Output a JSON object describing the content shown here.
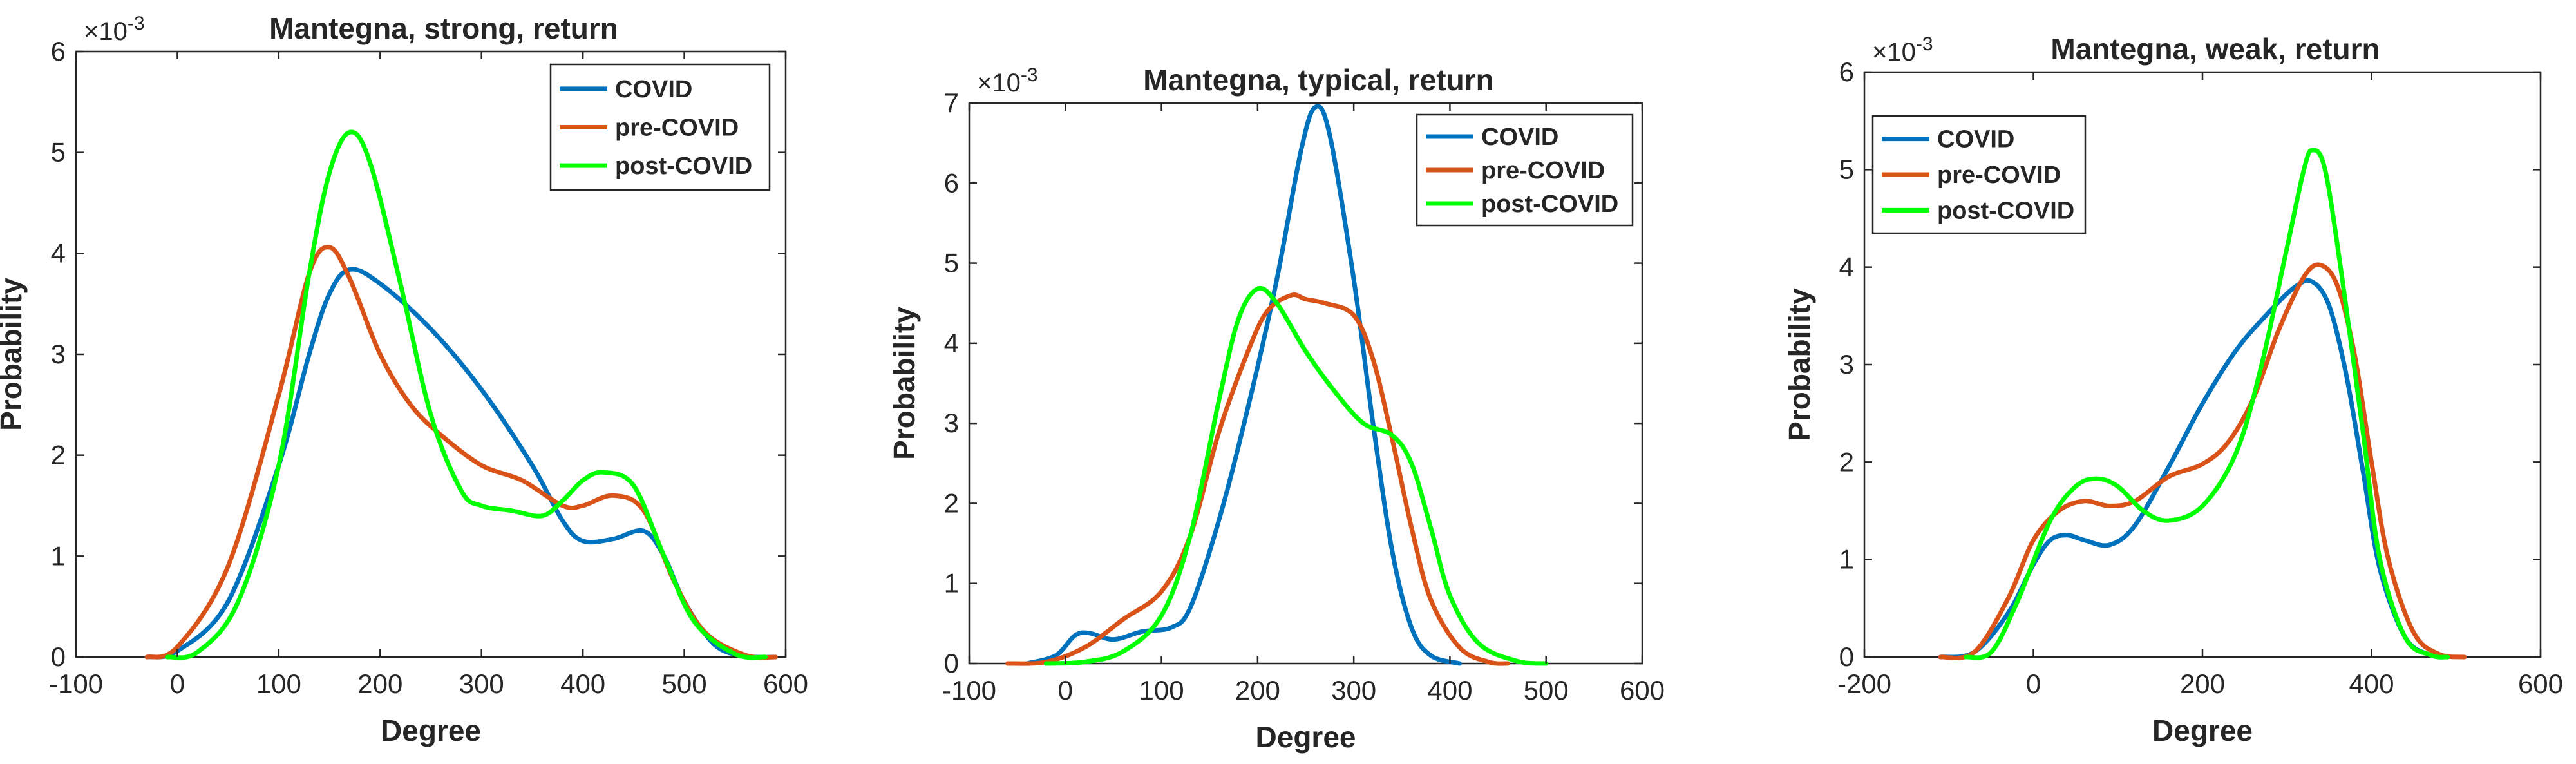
{
  "chart_data": [
    {
      "type": "line",
      "title": "Mantegna, strong, return",
      "xlabel": "Degree",
      "ylabel": "Probability",
      "y_exponent_base": "×10",
      "y_exponent_power": "-3",
      "xlim": [
        -100,
        600
      ],
      "ylim": [
        0,
        6
      ],
      "xticks": [
        -100,
        0,
        100,
        200,
        300,
        400,
        500,
        600
      ],
      "yticks": [
        0,
        1,
        2,
        3,
        4,
        5,
        6
      ],
      "legend_position": "top-right",
      "series": [
        {
          "name": "COVID",
          "color": "#0072BD",
          "points": [
            [
              -30,
              0
            ],
            [
              0,
              0.06
            ],
            [
              50,
              0.55
            ],
            [
              100,
              1.9
            ],
            [
              130,
              3.0
            ],
            [
              150,
              3.6
            ],
            [
              170,
              3.84
            ],
            [
              200,
              3.7
            ],
            [
              250,
              3.25
            ],
            [
              300,
              2.65
            ],
            [
              350,
              1.9
            ],
            [
              380,
              1.35
            ],
            [
              400,
              1.15
            ],
            [
              430,
              1.17
            ],
            [
              460,
              1.25
            ],
            [
              480,
              1.0
            ],
            [
              500,
              0.55
            ],
            [
              530,
              0.12
            ],
            [
              560,
              0.01
            ],
            [
              590,
              0
            ]
          ]
        },
        {
          "name": "pre-COVID",
          "color": "#D95319",
          "points": [
            [
              -30,
              0
            ],
            [
              0,
              0.1
            ],
            [
              50,
              0.9
            ],
            [
              100,
              2.6
            ],
            [
              130,
              3.8
            ],
            [
              150,
              4.06
            ],
            [
              170,
              3.75
            ],
            [
              200,
              3.0
            ],
            [
              230,
              2.5
            ],
            [
              260,
              2.2
            ],
            [
              300,
              1.9
            ],
            [
              340,
              1.75
            ],
            [
              380,
              1.5
            ],
            [
              400,
              1.5
            ],
            [
              430,
              1.6
            ],
            [
              460,
              1.45
            ],
            [
              490,
              0.75
            ],
            [
              520,
              0.25
            ],
            [
              560,
              0.02
            ],
            [
              590,
              0
            ]
          ]
        },
        {
          "name": "post-COVID",
          "color": "#00FF00",
          "points": [
            [
              -10,
              0
            ],
            [
              20,
              0.05
            ],
            [
              60,
              0.55
            ],
            [
              100,
              1.9
            ],
            [
              130,
              3.8
            ],
            [
              150,
              4.8
            ],
            [
              170,
              5.2
            ],
            [
              190,
              4.9
            ],
            [
              220,
              3.7
            ],
            [
              250,
              2.4
            ],
            [
              280,
              1.65
            ],
            [
              300,
              1.5
            ],
            [
              330,
              1.45
            ],
            [
              360,
              1.4
            ],
            [
              380,
              1.55
            ],
            [
              400,
              1.75
            ],
            [
              420,
              1.83
            ],
            [
              450,
              1.7
            ],
            [
              480,
              1.0
            ],
            [
              510,
              0.35
            ],
            [
              550,
              0.03
            ],
            [
              580,
              0
            ]
          ]
        }
      ]
    },
    {
      "type": "line",
      "title": "Mantegna, typical, return",
      "xlabel": "Degree",
      "ylabel": "Probability",
      "y_exponent_base": "×10",
      "y_exponent_power": "-3",
      "xlim": [
        -100,
        600
      ],
      "ylim": [
        0,
        7
      ],
      "xticks": [
        -100,
        0,
        100,
        200,
        300,
        400,
        500,
        600
      ],
      "yticks": [
        0,
        1,
        2,
        3,
        4,
        5,
        6,
        7
      ],
      "legend_position": "top-right",
      "series": [
        {
          "name": "COVID",
          "color": "#0072BD",
          "points": [
            [
              -40,
              0
            ],
            [
              -10,
              0.1
            ],
            [
              10,
              0.35
            ],
            [
              25,
              0.38
            ],
            [
              50,
              0.3
            ],
            [
              80,
              0.4
            ],
            [
              110,
              0.45
            ],
            [
              130,
              0.7
            ],
            [
              160,
              1.8
            ],
            [
              190,
              3.2
            ],
            [
              220,
              4.8
            ],
            [
              245,
              6.4
            ],
            [
              260,
              6.95
            ],
            [
              275,
              6.6
            ],
            [
              300,
              4.8
            ],
            [
              320,
              3.0
            ],
            [
              340,
              1.4
            ],
            [
              360,
              0.45
            ],
            [
              380,
              0.1
            ],
            [
              410,
              0
            ]
          ]
        },
        {
          "name": "pre-COVID",
          "color": "#D95319",
          "points": [
            [
              -60,
              0
            ],
            [
              -20,
              0.02
            ],
            [
              20,
              0.2
            ],
            [
              60,
              0.55
            ],
            [
              100,
              0.9
            ],
            [
              130,
              1.6
            ],
            [
              160,
              2.9
            ],
            [
              190,
              3.9
            ],
            [
              210,
              4.4
            ],
            [
              235,
              4.6
            ],
            [
              250,
              4.55
            ],
            [
              270,
              4.5
            ],
            [
              300,
              4.35
            ],
            [
              320,
              3.8
            ],
            [
              340,
              2.8
            ],
            [
              360,
              1.7
            ],
            [
              380,
              0.8
            ],
            [
              410,
              0.2
            ],
            [
              440,
              0.02
            ],
            [
              460,
              0
            ]
          ]
        },
        {
          "name": "post-COVID",
          "color": "#00FF00",
          "points": [
            [
              -20,
              0
            ],
            [
              20,
              0.02
            ],
            [
              60,
              0.15
            ],
            [
              100,
              0.6
            ],
            [
              130,
              1.6
            ],
            [
              160,
              3.3
            ],
            [
              180,
              4.3
            ],
            [
              200,
              4.68
            ],
            [
              220,
              4.5
            ],
            [
              250,
              3.9
            ],
            [
              280,
              3.4
            ],
            [
              310,
              3.0
            ],
            [
              340,
              2.85
            ],
            [
              360,
              2.5
            ],
            [
              380,
              1.7
            ],
            [
              400,
              0.85
            ],
            [
              430,
              0.25
            ],
            [
              470,
              0.03
            ],
            [
              500,
              0
            ]
          ]
        }
      ]
    },
    {
      "type": "line",
      "title": "Mantegna, weak, return",
      "xlabel": "Degree",
      "ylabel": "Probability",
      "y_exponent_base": "×10",
      "y_exponent_power": "-3",
      "xlim": [
        -200,
        600
      ],
      "ylim": [
        0,
        6
      ],
      "xticks": [
        -200,
        0,
        200,
        400,
        600
      ],
      "yticks": [
        0,
        1,
        2,
        3,
        4,
        5,
        6
      ],
      "legend_position": "top-left",
      "series": [
        {
          "name": "COVID",
          "color": "#0072BD",
          "points": [
            [
              -110,
              0
            ],
            [
              -70,
              0.05
            ],
            [
              -30,
              0.45
            ],
            [
              0,
              0.95
            ],
            [
              20,
              1.2
            ],
            [
              40,
              1.25
            ],
            [
              60,
              1.2
            ],
            [
              90,
              1.15
            ],
            [
              120,
              1.35
            ],
            [
              160,
              1.95
            ],
            [
              200,
              2.6
            ],
            [
              240,
              3.15
            ],
            [
              280,
              3.55
            ],
            [
              310,
              3.8
            ],
            [
              330,
              3.85
            ],
            [
              350,
              3.6
            ],
            [
              370,
              2.9
            ],
            [
              390,
              1.9
            ],
            [
              410,
              0.9
            ],
            [
              440,
              0.2
            ],
            [
              470,
              0.02
            ],
            [
              490,
              0
            ]
          ]
        },
        {
          "name": "pre-COVID",
          "color": "#D95319",
          "points": [
            [
              -110,
              0
            ],
            [
              -70,
              0.05
            ],
            [
              -30,
              0.6
            ],
            [
              0,
              1.2
            ],
            [
              30,
              1.5
            ],
            [
              60,
              1.6
            ],
            [
              90,
              1.55
            ],
            [
              120,
              1.6
            ],
            [
              160,
              1.85
            ],
            [
              200,
              1.98
            ],
            [
              230,
              2.2
            ],
            [
              260,
              2.65
            ],
            [
              290,
              3.35
            ],
            [
              320,
              3.9
            ],
            [
              340,
              4.02
            ],
            [
              360,
              3.8
            ],
            [
              380,
              3.1
            ],
            [
              400,
              2.0
            ],
            [
              420,
              1.0
            ],
            [
              450,
              0.25
            ],
            [
              480,
              0.03
            ],
            [
              510,
              0
            ]
          ]
        },
        {
          "name": "post-COVID",
          "color": "#00FF00",
          "points": [
            [
              -80,
              0
            ],
            [
              -50,
              0.05
            ],
            [
              -20,
              0.55
            ],
            [
              20,
              1.4
            ],
            [
              50,
              1.75
            ],
            [
              75,
              1.83
            ],
            [
              100,
              1.75
            ],
            [
              130,
              1.5
            ],
            [
              160,
              1.4
            ],
            [
              200,
              1.55
            ],
            [
              240,
              2.1
            ],
            [
              270,
              3.0
            ],
            [
              300,
              4.2
            ],
            [
              320,
              5.0
            ],
            [
              330,
              5.2
            ],
            [
              345,
              5.0
            ],
            [
              365,
              3.9
            ],
            [
              390,
              2.3
            ],
            [
              410,
              1.0
            ],
            [
              440,
              0.2
            ],
            [
              470,
              0.02
            ],
            [
              490,
              0
            ]
          ]
        }
      ]
    }
  ]
}
